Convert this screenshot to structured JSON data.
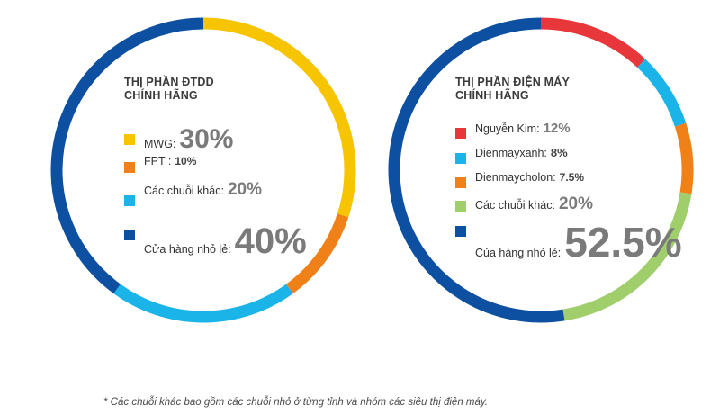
{
  "chart_data": [
    {
      "type": "pie",
      "title": "THỊ PHẦN ĐTDĐ CHÍNH HÃNG",
      "title_lines": [
        "THỊ PHẦN ĐTDD",
        "CHÍNH HÃNG"
      ],
      "categories": [
        "MWG",
        "FPT",
        "Các chuỗi khác",
        "Cửa hàng nhỏ lẻ"
      ],
      "labels": [
        "MWG:",
        "FPT :",
        "Các chuỗi khác:",
        "Cửa hàng nhỏ lẻ:"
      ],
      "values": [
        30,
        10,
        20,
        40
      ],
      "value_labels": [
        "30%",
        "10%",
        "20%",
        "40%"
      ],
      "colors": [
        "#f7c400",
        "#f08119",
        "#1ab4e8",
        "#0d4fa0"
      ],
      "legend_position": "inside"
    },
    {
      "type": "pie",
      "title": "THỊ PHẦN ĐIỆN MÁY CHÍNH HÃNG",
      "title_lines": [
        "THỊ PHẦN ĐIỆN MÁY",
        "CHÍNH HÃNG"
      ],
      "categories": [
        "Nguyễn Kim",
        "Dienmayxanh",
        "Dienmaycholon",
        "Các chuỗi khác",
        "Cửa hàng nhỏ lẻ"
      ],
      "labels": [
        "Nguyễn Kim:",
        "Dienmayxanh:",
        "Dienmaycholon:",
        "Các chuỗi khác:",
        "Của hàng nhỏ lẻ:"
      ],
      "values": [
        12,
        8,
        7.5,
        20,
        52.5
      ],
      "value_labels": [
        "12%",
        "8%",
        "7.5%",
        "20%",
        "52.5%"
      ],
      "colors": [
        "#e8373a",
        "#1ab4e8",
        "#f08119",
        "#9fce6b",
        "#0d4fa0"
      ],
      "legend_position": "inside"
    }
  ],
  "footnote": "* Các chuỗi khác bao gồm các chuỗi nhỏ ở từng tỉnh và nhóm các siêu thị điện máy."
}
